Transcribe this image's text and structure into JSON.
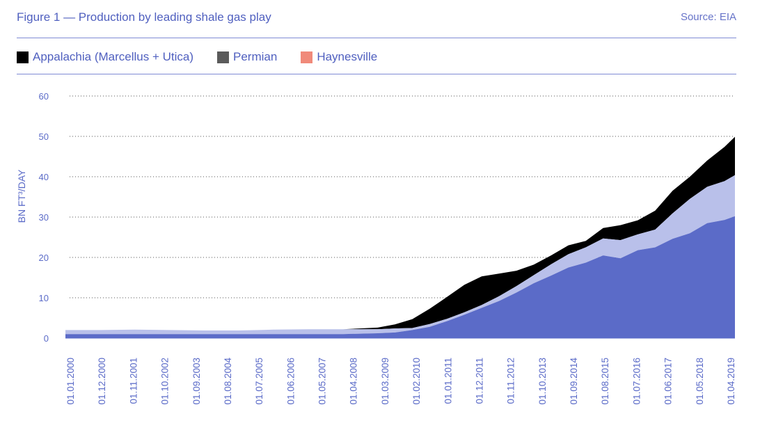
{
  "header": {
    "title": "Figure 1 — Production by leading shale gas play",
    "source": "Source: EIA"
  },
  "colors": {
    "appalachia": "#000000",
    "permian": "#5b6bc8",
    "haynesville": "#b9c0ea",
    "grid": "#555555",
    "text": "#5b6bc8"
  },
  "legend": [
    {
      "label": "Appalachia (Marcellus + Utica)",
      "color": "#000000"
    },
    {
      "label": "Permian",
      "color": "#5b5b5b"
    },
    {
      "label": "Haynesville",
      "color": "#f08a7a"
    }
  ],
  "chart_data": {
    "type": "area",
    "title": "Production by leading shale gas play",
    "ylabel": "BN FT³/DAY",
    "ylim": [
      0,
      60
    ],
    "yticks": [
      0,
      10,
      20,
      30,
      40,
      50,
      60
    ],
    "grid": true,
    "stacked": true,
    "legend_position": "top",
    "x_tick_labels": [
      "01.01.2000",
      "01.12.2000",
      "01.11.2001",
      "01.10.2002",
      "01.09.2003",
      "01.08.2004",
      "01.07.2005",
      "01.06.2006",
      "01.05.2007",
      "01.04.2008",
      "01.03.2009",
      "01.02.2010",
      "01.01.2011",
      "01.12.2011",
      "01.11.2012",
      "01.10.2013",
      "01.09.2014",
      "01.08.2015",
      "01.07.2016",
      "01.06.2017",
      "01.05.2018",
      "01.04.2019"
    ],
    "x": [
      2000.0,
      2001.0,
      2002.0,
      2003.0,
      2004.0,
      2005.0,
      2006.0,
      2007.0,
      2008.0,
      2009.0,
      2009.5,
      2010.0,
      2010.5,
      2011.0,
      2011.5,
      2012.0,
      2012.5,
      2013.0,
      2013.5,
      2014.0,
      2014.5,
      2015.0,
      2015.5,
      2016.0,
      2016.5,
      2017.0,
      2017.5,
      2018.0,
      2018.5,
      2019.0,
      2019.3
    ],
    "series": [
      {
        "name": "Permian",
        "values": [
          1.0,
          1.0,
          1.0,
          1.0,
          1.0,
          1.0,
          1.0,
          1.0,
          1.0,
          1.2,
          1.4,
          2.0,
          2.8,
          4.2,
          5.8,
          7.5,
          9.2,
          11.3,
          13.6,
          15.5,
          17.5,
          18.7,
          20.5,
          19.8,
          21.8,
          22.5,
          24.6,
          26.0,
          28.5,
          29.3,
          30.2
        ]
      },
      {
        "name": "Haynesville",
        "values": [
          1.0,
          1.0,
          1.1,
          1.0,
          0.9,
          0.9,
          1.1,
          1.2,
          1.2,
          1.0,
          1.0,
          0.5,
          0.7,
          0.6,
          0.6,
          0.7,
          1.2,
          1.6,
          2.0,
          2.8,
          3.3,
          3.8,
          4.2,
          4.5,
          3.9,
          4.4,
          6.3,
          8.5,
          9.0,
          9.6,
          10.2
        ]
      },
      {
        "name": "Appalachia (Marcellus + Utica)",
        "values": [
          0.0,
          0.0,
          0.0,
          0.0,
          0.0,
          0.0,
          0.0,
          0.0,
          0.0,
          0.4,
          1.0,
          2.2,
          3.8,
          5.4,
          6.8,
          7.1,
          5.6,
          3.8,
          2.6,
          2.2,
          2.2,
          1.6,
          2.6,
          3.7,
          3.5,
          4.7,
          5.6,
          5.5,
          6.5,
          8.5,
          9.5
        ]
      }
    ]
  }
}
